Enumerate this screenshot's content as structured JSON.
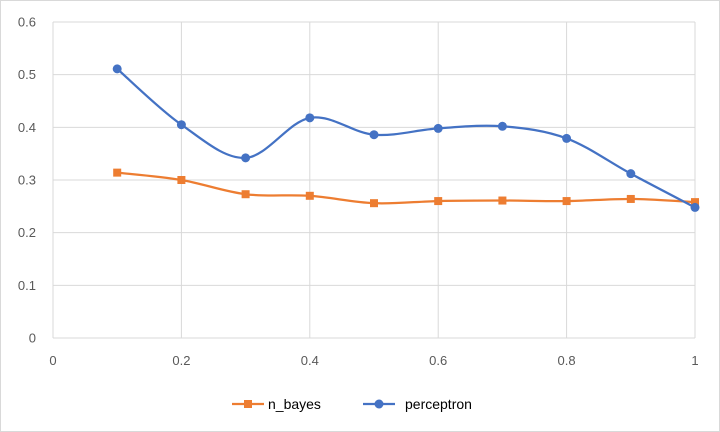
{
  "chart_data": {
    "type": "line",
    "smooth": true,
    "xlim": [
      0,
      1
    ],
    "ylim": [
      0,
      0.6
    ],
    "x_ticks": [
      0,
      0.2,
      0.4,
      0.6,
      0.8,
      1
    ],
    "x_tick_labels": [
      "0",
      "0.2",
      "0.4",
      "0.6",
      "0.8",
      "1"
    ],
    "y_ticks": [
      0,
      0.1,
      0.2,
      0.3,
      0.4,
      0.5,
      0.6
    ],
    "y_tick_labels": [
      "0",
      "0.1",
      "0.2",
      "0.3",
      "0.4",
      "0.5",
      "0.6"
    ],
    "grid": true,
    "legend_position": "bottom",
    "x": [
      0.1,
      0.2,
      0.3,
      0.4,
      0.5,
      0.6,
      0.7,
      0.8,
      0.9,
      1.0
    ],
    "series": [
      {
        "name": "n_bayes",
        "color": "#ed7d31",
        "marker": "square",
        "values": [
          0.314,
          0.3,
          0.273,
          0.27,
          0.256,
          0.26,
          0.261,
          0.26,
          0.264,
          0.258
        ]
      },
      {
        "name": "perceptron",
        "color": "#4472c4",
        "marker": "circle",
        "values": [
          0.511,
          0.405,
          0.342,
          0.418,
          0.386,
          0.398,
          0.402,
          0.379,
          0.312,
          0.248
        ]
      }
    ]
  }
}
